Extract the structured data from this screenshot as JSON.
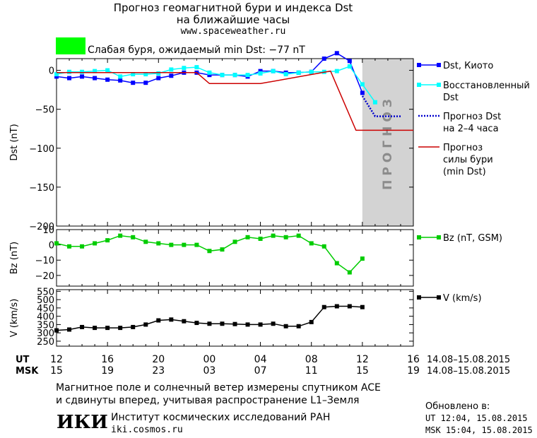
{
  "header": {
    "title_line1": "Прогноз геомагнитной бури и индекса Dst",
    "title_line2": "на ближайшие часы",
    "url": "www.spaceweather.ru",
    "storm_color": "#00ff00",
    "storm_text": "Слабая буря, ожидаемый min Dst: −77 nT"
  },
  "footer": {
    "note_line1": "Магнитное поле и солнечный ветер измерены спутником ACE",
    "note_line2": "и сдвинуты вперед, учитывая распространение L1–Земля",
    "logo_text": "ИКИ",
    "institute": "Институт космических исследований РАН",
    "institute_url": "iki.cosmos.ru",
    "updated_label": "Обновлено в:",
    "updated_ut": "UT  12:04, 15.08.2015",
    "updated_msk": "MSK 15:04, 15.08.2015"
  },
  "colors": {
    "dst": "#0000ff",
    "restored": "#00ffff",
    "forecast": "#0000cd",
    "storm_strength": "#cc0000",
    "bz": "#00cc00",
    "v": "#000000",
    "forecast_band": "#d3d3d3"
  },
  "chart_data": [
    {
      "id": "dst",
      "type": "line",
      "ylabel": "Dst (nT)",
      "ylim": [
        -200,
        15
      ],
      "yticks": [
        0,
        -50,
        -100,
        -150,
        -200
      ],
      "ytick_labels": [
        "0",
        "−50",
        "−100",
        "−150",
        "−200"
      ],
      "x_range_hours": [
        0,
        28
      ],
      "forecast_band": {
        "from": 24,
        "to": 28,
        "label": "ПРОГНОЗ"
      },
      "legend_position": "right",
      "series": [
        {
          "name": "Dst, Киото",
          "style": "line-square",
          "color_key": "dst",
          "x": [
            0,
            1,
            2,
            3,
            4,
            5,
            6,
            7,
            8,
            9,
            10,
            11,
            12,
            13,
            14,
            15,
            16,
            17,
            18,
            19,
            20,
            21,
            22,
            23,
            24
          ],
          "y": [
            -8,
            -10,
            -8,
            -10,
            -12,
            -13,
            -16,
            -16,
            -10,
            -7,
            -3,
            -3,
            -6,
            -6,
            -6,
            -8,
            -1,
            -1,
            -3,
            -3,
            -2,
            15,
            22,
            12,
            -29
          ]
        },
        {
          "name": "Восстановленный Dst",
          "style": "line-square",
          "color_key": "restored",
          "x": [
            0,
            1,
            2,
            3,
            4,
            5,
            6,
            7,
            8,
            9,
            10,
            11,
            12,
            13,
            14,
            15,
            16,
            17,
            18,
            19,
            20,
            21,
            22,
            23,
            24,
            25
          ],
          "y": [
            -5,
            -2,
            -2,
            -1,
            0,
            -8,
            -5,
            -5,
            -4,
            1,
            3,
            4,
            -3,
            -6,
            -6,
            -6,
            -4,
            -1,
            -5,
            -3,
            -2,
            -2,
            -1,
            5,
            -18,
            -41
          ]
        },
        {
          "name": "Прогноз Dst на 2–4 часа",
          "style": "dotted",
          "color_key": "forecast",
          "x": [
            24,
            25,
            26,
            27
          ],
          "y": [
            -33,
            -59,
            -59,
            -59
          ]
        },
        {
          "name": "Прогноз силы бури (min Dst)",
          "style": "line",
          "color_key": "storm_strength",
          "x": [
            0,
            11,
            12,
            16,
            21.5,
            23.5,
            28
          ],
          "y": [
            -3,
            -3,
            -17,
            -17,
            -1,
            -77,
            -77
          ]
        }
      ],
      "legend": [
        {
          "lines": [
            "Dst, Киото"
          ]
        },
        {
          "lines": [
            "Восстановленный",
            "Dst"
          ]
        },
        {
          "lines": [
            "Прогноз Dst",
            "на 2–4 часа"
          ]
        },
        {
          "lines": [
            "Прогноз",
            "силы бури",
            "(min Dst)"
          ]
        }
      ]
    },
    {
      "id": "bz",
      "type": "line",
      "ylabel": "Bz (nT)",
      "ylim": [
        -27,
        10
      ],
      "yticks": [
        10,
        0,
        -10,
        -20
      ],
      "ytick_labels": [
        "10",
        "0",
        "−10",
        "−20"
      ],
      "x_range_hours": [
        0,
        28
      ],
      "legend_position": "right",
      "series": [
        {
          "name": "Bz (nT, GSM)",
          "style": "line-square",
          "color_key": "bz",
          "x": [
            0,
            1,
            2,
            3,
            4,
            5,
            6,
            7,
            8,
            9,
            10,
            11,
            12,
            13,
            14,
            15,
            16,
            17,
            18,
            19,
            20,
            21,
            22,
            23,
            24,
            25
          ],
          "y": [
            1,
            -1,
            -1,
            1,
            3,
            6,
            5,
            2,
            1,
            0,
            0,
            0,
            -4,
            -3,
            2,
            5,
            4,
            6,
            5,
            6,
            1,
            -1,
            -12,
            -18,
            -9,
            null
          ]
        }
      ],
      "legend": [
        {
          "lines": [
            "Bz (nT, GSM)"
          ]
        }
      ]
    },
    {
      "id": "v",
      "type": "line",
      "ylabel": "V (km/s)",
      "ylim": [
        220,
        560
      ],
      "yticks": [
        550,
        500,
        450,
        400,
        350,
        300,
        250
      ],
      "ytick_labels": [
        "550",
        "500",
        "450",
        "400",
        "350",
        "300",
        "250"
      ],
      "x_range_hours": [
        0,
        28
      ],
      "legend_position": "right",
      "series": [
        {
          "name": "V (km/s)",
          "style": "line-square",
          "color_key": "v",
          "x": [
            0,
            1,
            2,
            3,
            4,
            5,
            6,
            7,
            8,
            9,
            10,
            11,
            12,
            13,
            14,
            15,
            16,
            17,
            18,
            19,
            20,
            21,
            22,
            23,
            24
          ],
          "y": [
            315,
            320,
            335,
            330,
            330,
            330,
            335,
            350,
            375,
            380,
            370,
            360,
            355,
            355,
            353,
            350,
            350,
            355,
            340,
            340,
            365,
            455,
            460,
            460,
            455
          ]
        }
      ],
      "legend": [
        {
          "lines": [
            "V (km/s)"
          ]
        }
      ]
    }
  ],
  "time_axis": {
    "ut_label": "UT",
    "msk_label": "MSK",
    "tick_hours": [
      0,
      4,
      8,
      12,
      16,
      20,
      24,
      28
    ],
    "ut_ticks": [
      "12",
      "16",
      "20",
      "00",
      "04",
      "08",
      "12",
      "16"
    ],
    "msk_ticks": [
      "15",
      "19",
      "23",
      "03",
      "07",
      "11",
      "15",
      "19"
    ],
    "ut_range": "14.08–15.08.2015",
    "msk_range": "14.08–15.08.2015"
  }
}
